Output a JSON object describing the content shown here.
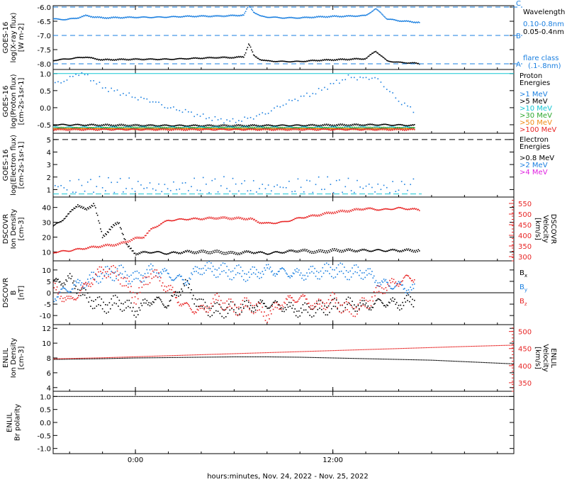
{
  "footer": {
    "xlabel": "hours:minutes, Nov. 24, 2022 - Nov. 25, 2022"
  },
  "colors": {
    "black": "#000000",
    "blue": "#1a7fe0",
    "cyan": "#15c7d4",
    "green": "#2ea82e",
    "yellow": "#e0c40a",
    "orange": "#f08b16",
    "red": "#e82525",
    "magenta": "#e020e0"
  },
  "chart_data": [
    {
      "type": "line",
      "id": "xray",
      "ylabel_lines": [
        "GOES-16",
        "log(X-ray flux)",
        "[W m-2]"
      ],
      "yticks": [
        -6.0,
        -6.5,
        -7.0,
        -7.5,
        -8.0
      ],
      "ytick_labels": [
        "-6.0",
        "-6.5",
        "-7.0",
        "-7.5",
        "-8.0"
      ],
      "ylim": [
        -8.2,
        -5.95
      ],
      "flare_class_levels": [
        {
          "value": -6.0,
          "label": "C"
        },
        {
          "value": -7.0,
          "label": "B"
        },
        {
          "value": -8.0,
          "label": "A"
        }
      ],
      "legend_title": "Wavelength",
      "flare_label_lines": [
        "flare class",
        "(.1-.8nm)"
      ],
      "series": [
        {
          "name": "0.10-0.8nm",
          "color": "blue",
          "x": [
            -5.0,
            -4.2,
            -3.5,
            -3.0,
            -2.6,
            -2.0,
            -1.0,
            0.0,
            1.0,
            2.0,
            3.0,
            4.0,
            5.0,
            6.0,
            6.6,
            6.9,
            7.2,
            7.6,
            8.0,
            9.0,
            10.0,
            11.0,
            12.0,
            13.0,
            14.0,
            14.6,
            14.9,
            15.3,
            16.0,
            17.0,
            17.3
          ],
          "values": [
            -6.42,
            -6.44,
            -6.38,
            -6.3,
            -6.34,
            -6.38,
            -6.37,
            -6.36,
            -6.36,
            -6.35,
            -6.33,
            -6.32,
            -6.32,
            -6.3,
            -6.28,
            -5.92,
            -6.18,
            -6.32,
            -6.35,
            -6.38,
            -6.38,
            -6.35,
            -6.33,
            -6.32,
            -6.3,
            -6.06,
            -6.2,
            -6.42,
            -6.48,
            -6.53,
            -6.54
          ]
        },
        {
          "name": "0.05-0.4nm",
          "color": "black",
          "x": [
            -5.0,
            -4.0,
            -3.0,
            -2.5,
            -2.0,
            -1.0,
            0.0,
            1.0,
            2.0,
            3.0,
            4.0,
            5.0,
            6.0,
            6.6,
            6.9,
            7.2,
            7.6,
            8.0,
            9.0,
            10.0,
            11.0,
            12.0,
            13.0,
            14.0,
            14.6,
            14.9,
            15.3,
            16.0,
            17.0,
            17.3
          ],
          "values": [
            -7.88,
            -7.82,
            -7.76,
            -7.82,
            -7.86,
            -7.85,
            -7.84,
            -7.84,
            -7.84,
            -7.82,
            -7.8,
            -7.78,
            -7.78,
            -7.75,
            -7.28,
            -7.72,
            -7.85,
            -7.9,
            -7.92,
            -7.92,
            -7.88,
            -7.86,
            -7.84,
            -7.82,
            -7.55,
            -7.7,
            -7.9,
            -7.95,
            -7.98,
            -8.0
          ]
        }
      ]
    },
    {
      "type": "scatter",
      "id": "proton",
      "ylabel_lines": [
        "GOES-16",
        "log(Proton flux)",
        "[cm-2s-1sr-1]"
      ],
      "yticks": [
        -0.5,
        0.0,
        0.5,
        1.0
      ],
      "ytick_labels": [
        "-0.5",
        "0.0",
        "0.5",
        "1.0"
      ],
      "ylim": [
        -0.75,
        1.12
      ],
      "threshold": 1.0,
      "legend_title_lines": [
        "Proton",
        "Energies"
      ],
      "series": [
        {
          "name": ">1 MeV",
          "color": "blue",
          "x": [
            -5.0,
            -4.0,
            -3.5,
            -3.0,
            -2.0,
            -1.0,
            0.0,
            1.0,
            2.0,
            3.0,
            4.0,
            5.0,
            6.0,
            7.0,
            8.0,
            9.0,
            10.0,
            11.0,
            12.0,
            13.0,
            14.0,
            14.5,
            15.0,
            16.0,
            17.0
          ],
          "values": [
            0.68,
            0.85,
            1.02,
            0.95,
            0.6,
            0.45,
            0.3,
            0.2,
            0.0,
            -0.1,
            -0.25,
            -0.35,
            -0.4,
            -0.3,
            -0.15,
            0.1,
            0.3,
            0.45,
            0.7,
            0.9,
            0.85,
            0.9,
            0.7,
            0.2,
            -0.1
          ]
        },
        {
          "name": ">5 MeV",
          "color": "black",
          "x": [
            -5.0,
            0.0,
            5.0,
            10.0,
            15.0,
            17.0
          ],
          "values": [
            -0.5,
            -0.52,
            -0.53,
            -0.52,
            -0.5,
            -0.52
          ]
        },
        {
          "name": ">10 MeV",
          "color": "cyan",
          "x": [
            -5.0,
            0.0,
            5.0,
            10.0,
            15.0,
            17.0
          ],
          "values": [
            -0.58,
            -0.58,
            -0.58,
            -0.58,
            -0.58,
            -0.58
          ]
        },
        {
          "name": ">30 MeV",
          "color": "green",
          "x": [
            -5.0,
            0.0,
            5.0,
            10.0,
            15.0,
            17.0
          ],
          "values": [
            -0.6,
            -0.6,
            -0.6,
            -0.6,
            -0.6,
            -0.6
          ]
        },
        {
          "name": ">50 MeV",
          "color": "orange",
          "x": [
            -5.0,
            0.0,
            5.0,
            10.0,
            15.0,
            17.0
          ],
          "values": [
            -0.62,
            -0.62,
            -0.62,
            -0.62,
            -0.62,
            -0.62
          ]
        },
        {
          "name": ">100 MeV",
          "color": "red",
          "x": [
            -5.0,
            0.0,
            5.0,
            10.0,
            15.0,
            17.0
          ],
          "values": [
            -0.64,
            -0.64,
            -0.64,
            -0.64,
            -0.64,
            -0.64
          ]
        }
      ]
    },
    {
      "type": "scatter",
      "id": "electron",
      "ylabel_lines": [
        "GOES-16",
        "log(Electron flux)",
        "[cm-2s-1sr-1]"
      ],
      "yticks": [
        1,
        2,
        3,
        4,
        5
      ],
      "ytick_labels": [
        "1",
        "2",
        "3",
        "4",
        "5"
      ],
      "ylim": [
        0.4,
        5.5
      ],
      "threshold": 5.0,
      "legend_title_lines": [
        "Electron",
        "Energies"
      ],
      "series": [
        {
          "name": ">0.8 MeV",
          "color": "black",
          "x": [],
          "values": []
        },
        {
          "name": ">2 MeV",
          "color": "blue",
          "x": [
            -5.0,
            -4.0,
            -3.0,
            -2.0,
            -1.0,
            0.0,
            1.0,
            2.0,
            3.0,
            4.0,
            5.0,
            6.0,
            7.0,
            8.0,
            9.0,
            10.0,
            11.0,
            12.0,
            13.0,
            14.0,
            15.0,
            16.0,
            17.0
          ],
          "values": [
            1.0,
            1.6,
            1.2,
            1.8,
            1.1,
            1.4,
            1.0,
            1.7,
            1.2,
            1.5,
            0.9,
            1.3,
            1.8,
            1.1,
            1.4,
            1.0,
            1.6,
            1.2,
            1.7,
            1.3,
            1.9,
            1.1,
            1.4
          ]
        },
        {
          "name": ">4 MeV",
          "color": "magenta",
          "x": [],
          "values": []
        }
      ],
      "baseline": {
        "color": "cyan",
        "value": 0.65
      }
    },
    {
      "type": "line",
      "id": "dscovr_plasma",
      "ylabel_lines": [
        "DSCOVR",
        "Ion Density",
        "[cm-3]"
      ],
      "yticks": [
        10,
        20,
        30,
        40
      ],
      "ytick_labels": [
        "10",
        "20",
        "30",
        "40"
      ],
      "ylim": [
        4,
        47
      ],
      "y2label_lines": [
        "DSCOVR",
        "Velocity",
        "[km/s]"
      ],
      "y2ticks": [
        300,
        350,
        400,
        450,
        500,
        550
      ],
      "y2tick_labels": [
        "300",
        "350",
        "400",
        "450",
        "500",
        "550"
      ],
      "y2lim": [
        280,
        580
      ],
      "series": [
        {
          "name": "density",
          "color": "black",
          "axis": "left",
          "x": [
            -5.0,
            -4.5,
            -4.0,
            -3.5,
            -3.0,
            -2.5,
            -2.0,
            -1.5,
            -1.0,
            -0.5,
            0.0,
            1.0,
            2.0,
            3.0,
            4.0,
            5.0,
            6.0,
            7.0,
            8.0,
            9.0,
            10.0,
            11.0,
            12.0,
            13.0,
            14.0,
            15.0,
            16.0,
            17.3
          ],
          "values": [
            27,
            31,
            36,
            42,
            38,
            43,
            20,
            26,
            30,
            14,
            9,
            10,
            9,
            10,
            10,
            10,
            9,
            10,
            9,
            10,
            11,
            10,
            11,
            11,
            11,
            11,
            11,
            11
          ]
        },
        {
          "name": "velocity",
          "color": "red",
          "axis": "right",
          "x": [
            -5.0,
            -4.0,
            -3.0,
            -2.0,
            -1.0,
            0.0,
            0.5,
            1.0,
            1.5,
            2.0,
            3.0,
            4.0,
            5.0,
            6.0,
            7.0,
            7.5,
            8.0,
            9.0,
            10.0,
            11.0,
            12.0,
            13.0,
            14.0,
            15.0,
            16.0,
            17.3
          ],
          "values": [
            320,
            328,
            340,
            350,
            358,
            385,
            392,
            430,
            452,
            470,
            476,
            478,
            482,
            480,
            478,
            462,
            456,
            462,
            482,
            494,
            508,
            516,
            526,
            520,
            528,
            520
          ]
        }
      ]
    },
    {
      "type": "scatter",
      "id": "dscovr_field",
      "ylabel_lines": [
        "DSCOVR",
        "B",
        "[nT]"
      ],
      "yticks": [
        -10,
        -5,
        0,
        5,
        10
      ],
      "ytick_labels": [
        "-10",
        "-5",
        "0",
        "5",
        "10"
      ],
      "ylim": [
        -14,
        14
      ],
      "series": [
        {
          "name": "Bx",
          "color": "black",
          "x": [
            -5.0,
            -4.0,
            -3.0,
            -2.0,
            -1.0,
            0.0,
            1.0,
            2.0,
            3.0,
            4.0,
            5.0,
            6.0,
            7.0,
            8.0,
            9.0,
            10.0,
            11.0,
            12.0,
            13.0,
            14.0,
            15.0,
            16.0,
            17.0
          ],
          "values": [
            4,
            6,
            -2,
            -6,
            -4,
            -8,
            -3,
            -5,
            4,
            -6,
            -8,
            -7,
            -6,
            -5,
            -6,
            -8,
            -7,
            -6,
            -5,
            -6,
            -4,
            -5,
            -3
          ]
        },
        {
          "name": "By",
          "color": "blue",
          "x": [
            -5.0,
            -4.0,
            -3.0,
            -2.0,
            -1.0,
            0.0,
            1.0,
            2.0,
            3.0,
            4.0,
            5.0,
            6.0,
            7.0,
            8.0,
            9.0,
            10.0,
            11.0,
            12.0,
            13.0,
            14.0,
            15.0,
            16.0,
            17.0
          ],
          "values": [
            -2,
            2,
            5,
            8,
            9,
            6,
            10,
            8,
            5,
            11,
            10,
            9,
            8,
            10,
            9,
            8,
            9,
            10,
            9,
            9,
            4,
            3,
            1
          ]
        },
        {
          "name": "Bz",
          "color": "red",
          "x": [
            -5.0,
            -4.0,
            -3.0,
            -2.0,
            -1.0,
            0.0,
            1.0,
            2.0,
            3.0,
            4.0,
            5.0,
            6.0,
            7.0,
            8.0,
            9.0,
            10.0,
            11.0,
            12.0,
            13.0,
            14.0,
            15.0,
            16.0,
            17.0
          ],
          "values": [
            2,
            -4,
            3,
            10,
            8,
            -2,
            9,
            2,
            -6,
            -8,
            -3,
            -7,
            -5,
            -10,
            -4,
            -2,
            -6,
            -3,
            -8,
            -5,
            2,
            5,
            7
          ]
        }
      ]
    },
    {
      "type": "line",
      "id": "enlil_plasma",
      "ylabel_lines": [
        "ENLIL",
        "Ion Density",
        "[cm-3]"
      ],
      "yticks": [
        4,
        6,
        8,
        10,
        12
      ],
      "ytick_labels": [
        "4",
        "6",
        "8",
        "10",
        "12"
      ],
      "ylim": [
        3.5,
        12.5
      ],
      "y2label_lines": [
        "ENLIL",
        "Velocity",
        "[km/s]"
      ],
      "y2ticks": [
        350,
        400,
        450,
        500
      ],
      "y2tick_labels": [
        "350",
        "400",
        "450",
        "500"
      ],
      "y2lim": [
        325,
        520
      ],
      "series": [
        {
          "name": "density",
          "color": "black",
          "axis": "left",
          "x": [
            -5,
            -2,
            0,
            2,
            4,
            6,
            8,
            10,
            12,
            14,
            16,
            18,
            20,
            23
          ],
          "values": [
            7.8,
            7.9,
            8.0,
            8.05,
            8.1,
            8.15,
            8.15,
            8.1,
            8.0,
            7.9,
            7.8,
            7.7,
            7.5,
            7.2
          ]
        },
        {
          "name": "velocity",
          "color": "red",
          "axis": "right",
          "x": [
            -5,
            -2,
            0,
            2,
            4,
            6,
            8,
            10,
            12,
            14,
            16,
            18,
            20,
            23
          ],
          "values": [
            420,
            423,
            426,
            429,
            432,
            435,
            438,
            441,
            444,
            447,
            450,
            453,
            456,
            460
          ]
        }
      ]
    },
    {
      "type": "line",
      "id": "enlil_polarity",
      "ylabel_lines": [
        "ENLIL",
        "Br polarity"
      ],
      "yticks": [
        -1.0,
        -0.5,
        0.0,
        0.5,
        1.0
      ],
      "ytick_labels": [
        "-1.0",
        "-0.5",
        "0.0",
        "0.5",
        "1.0"
      ],
      "ylim": [
        -1.2,
        1.2
      ],
      "series": [
        {
          "name": "polarity",
          "color": "black",
          "x": [
            -5,
            23
          ],
          "values": [
            1.0,
            1.0
          ]
        }
      ]
    }
  ],
  "xaxis": {
    "range_hours": [
      -5,
      23
    ],
    "tick_hours": [
      0,
      12
    ],
    "tick_labels": [
      "0:00",
      "12:00"
    ]
  }
}
